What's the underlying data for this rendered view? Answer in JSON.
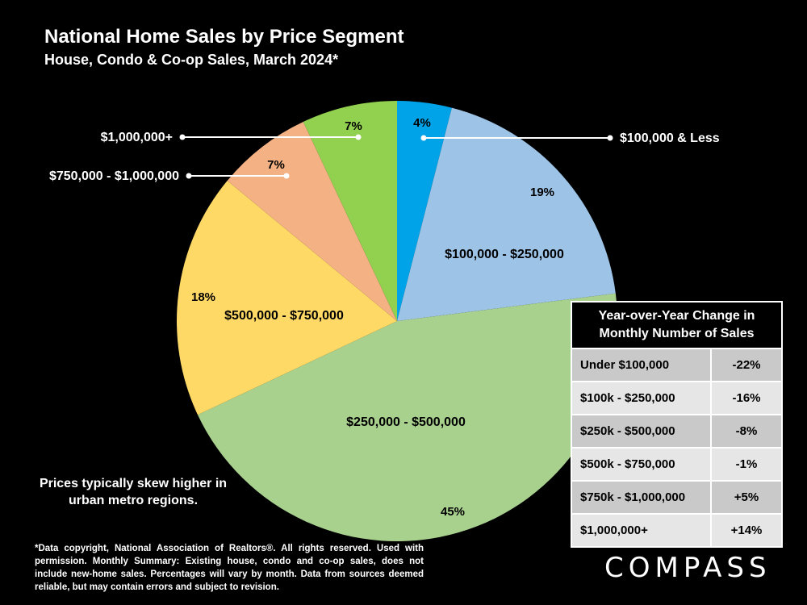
{
  "title": "National Home Sales by Price Segment",
  "subtitle": "House, Condo & Co-op Sales, March 2024*",
  "chart_data": {
    "type": "pie",
    "title": "National Home Sales by Price Segment",
    "slices": [
      {
        "label": "$100,000 & Less",
        "value": 4,
        "pct_label": "4%",
        "color": "#00a3e8"
      },
      {
        "label": "$100,000 - $250,000",
        "value": 19,
        "pct_label": "19%",
        "color": "#9dc3e6"
      },
      {
        "label": "$250,000 - $500,000",
        "value": 45,
        "pct_label": "45%",
        "color": "#a9d18e"
      },
      {
        "label": "$500,000 - $750,000",
        "value": 18,
        "pct_label": "18%",
        "color": "#ffd966"
      },
      {
        "label": "$750,000 - $1,000,000",
        "value": 7,
        "pct_label": "7%",
        "color": "#f4b183"
      },
      {
        "label": "$1,000,000+",
        "value": 7,
        "pct_label": "7%",
        "color": "#92d050"
      }
    ]
  },
  "yoy_table": {
    "header": "Year-over-Year Change in Monthly Number of Sales",
    "rows": [
      {
        "segment": "Under $100,000",
        "change": "-22%"
      },
      {
        "segment": "$100k - $250,000",
        "change": "-16%"
      },
      {
        "segment": "$250k - $500,000",
        "change": "-8%"
      },
      {
        "segment": "$500k - $750,000",
        "change": "-1%"
      },
      {
        "segment": "$750k - $1,000,000",
        "change": "+5%"
      },
      {
        "segment": "$1,000,000+",
        "change": "+14%"
      }
    ]
  },
  "note": "Prices typically skew higher in urban metro regions.",
  "footnote": "*Data copyright, National Association of Realtors®. All rights reserved. Used with permission. Monthly Summary: Existing house, condo and co-op sales, does not include new-home sales. Percentages will vary by month. Data from sources deemed reliable, but may contain errors and subject to revision.",
  "logo": "COMPASS"
}
